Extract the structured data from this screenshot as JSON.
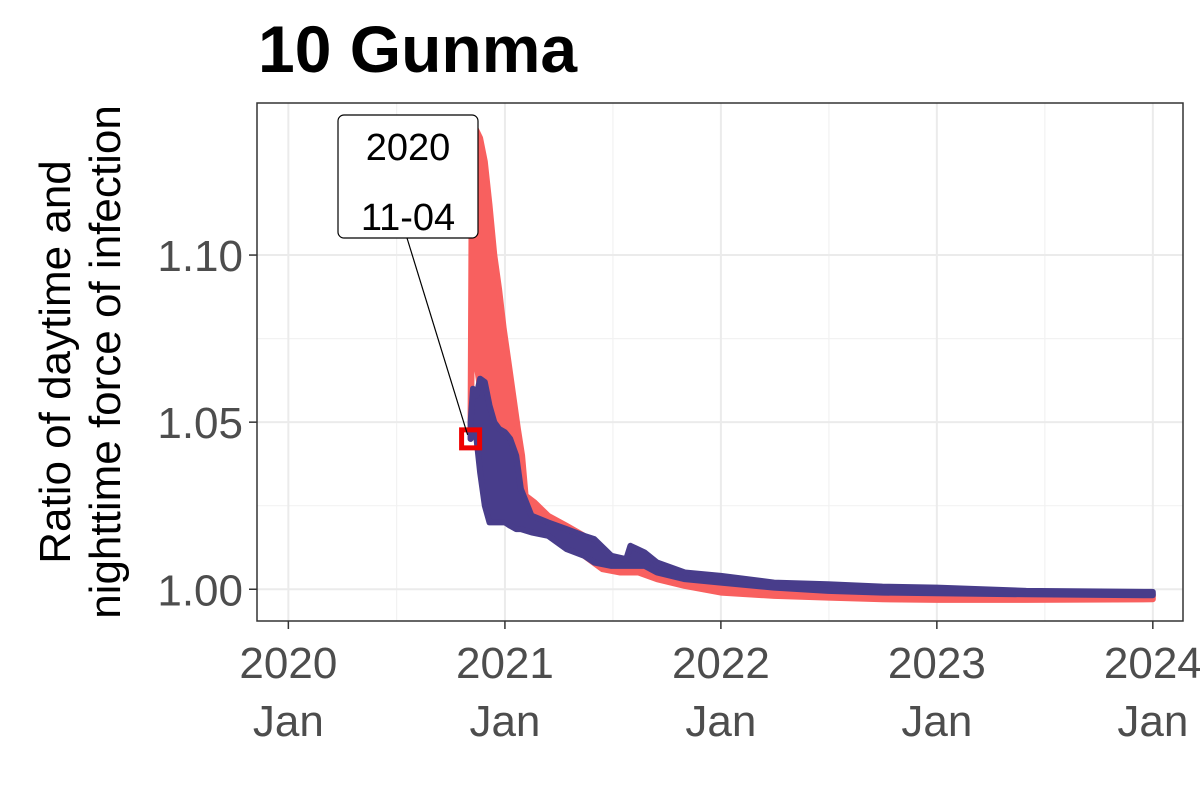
{
  "chart_data": {
    "type": "line",
    "title": "10 Gunma",
    "ylabel_lines": [
      "Ratio of daytime and",
      "nighttime force of infection"
    ],
    "xlabel": "",
    "x_ticks": [
      {
        "date": "2020-01-01",
        "line1": "2020",
        "line2": "Jan"
      },
      {
        "date": "2021-01-01",
        "line1": "2021",
        "line2": "Jan"
      },
      {
        "date": "2022-01-01",
        "line1": "2022",
        "line2": "Jan"
      },
      {
        "date": "2023-01-01",
        "line1": "2023",
        "line2": "Jan"
      },
      {
        "date": "2024-01-01",
        "line1": "2024",
        "line2": "Jan"
      }
    ],
    "y_ticks": [
      {
        "value": 1.0,
        "label": "1.00"
      },
      {
        "value": 1.05,
        "label": "1.05"
      },
      {
        "value": 1.1,
        "label": "1.10"
      }
    ],
    "xlim": [
      "2019-11-09",
      "2024-02-21"
    ],
    "ylim": [
      0.9905,
      1.1455
    ],
    "grid": true,
    "legend": "none",
    "series": [
      {
        "color": "#f8605f",
        "band": [
          {
            "x": "2020-11-04",
            "lo": 1.045,
            "hi": 1.052
          },
          {
            "x": "2020-11-06",
            "lo": 1.07,
            "hi": 1.125
          },
          {
            "x": "2020-11-12",
            "lo": 1.07,
            "hi": 1.138
          },
          {
            "x": "2020-11-20",
            "lo": 1.06,
            "hi": 1.135
          },
          {
            "x": "2020-11-28",
            "lo": 1.05,
            "hi": 1.128
          },
          {
            "x": "2020-12-06",
            "lo": 1.04,
            "hi": 1.115
          },
          {
            "x": "2020-12-14",
            "lo": 1.03,
            "hi": 1.1
          },
          {
            "x": "2020-12-22",
            "lo": 1.025,
            "hi": 1.09
          },
          {
            "x": "2020-12-30",
            "lo": 1.022,
            "hi": 1.078
          },
          {
            "x": "2021-01-07",
            "lo": 1.022,
            "hi": 1.068
          },
          {
            "x": "2021-01-15",
            "lo": 1.021,
            "hi": 1.058
          },
          {
            "x": "2021-01-23",
            "lo": 1.021,
            "hi": 1.048
          },
          {
            "x": "2021-01-30",
            "lo": 1.02,
            "hi": 1.04
          },
          {
            "x": "2021-02-05",
            "lo": 1.02,
            "hi": 1.028
          },
          {
            "x": "2021-02-20",
            "lo": 1.019,
            "hi": 1.026
          },
          {
            "x": "2021-03-15",
            "lo": 1.017,
            "hi": 1.022
          },
          {
            "x": "2021-04-15",
            "lo": 1.014,
            "hi": 1.019
          },
          {
            "x": "2021-05-15",
            "lo": 1.01,
            "hi": 1.016
          },
          {
            "x": "2021-06-15",
            "lo": 1.006,
            "hi": 1.009
          },
          {
            "x": "2021-07-15",
            "lo": 1.005,
            "hi": 1.008
          },
          {
            "x": "2021-08-15",
            "lo": 1.005,
            "hi": 1.008
          },
          {
            "x": "2021-09-15",
            "lo": 1.003,
            "hi": 1.006
          },
          {
            "x": "2021-11-01",
            "lo": 1.001,
            "hi": 1.004
          },
          {
            "x": "2022-01-01",
            "lo": 0.999,
            "hi": 1.002
          },
          {
            "x": "2022-04-01",
            "lo": 0.998,
            "hi": 1.0005
          },
          {
            "x": "2022-07-01",
            "lo": 0.9975,
            "hi": 0.9995
          },
          {
            "x": "2022-10-01",
            "lo": 0.997,
            "hi": 0.999
          },
          {
            "x": "2023-01-01",
            "lo": 0.9968,
            "hi": 0.9988
          },
          {
            "x": "2023-06-01",
            "lo": 0.9968,
            "hi": 0.9985
          },
          {
            "x": "2024-01-01",
            "lo": 0.997,
            "hi": 0.9985
          }
        ]
      },
      {
        "color": "#483d8b",
        "band": [
          {
            "x": "2020-11-04",
            "lo": 1.045,
            "hi": 1.05
          },
          {
            "x": "2020-11-08",
            "lo": 1.048,
            "hi": 1.06
          },
          {
            "x": "2020-11-14",
            "lo": 1.045,
            "hi": 1.058
          },
          {
            "x": "2020-11-20",
            "lo": 1.035,
            "hi": 1.063
          },
          {
            "x": "2020-11-28",
            "lo": 1.025,
            "hi": 1.062
          },
          {
            "x": "2020-12-06",
            "lo": 1.02,
            "hi": 1.055
          },
          {
            "x": "2020-12-14",
            "lo": 1.02,
            "hi": 1.05
          },
          {
            "x": "2020-12-22",
            "lo": 1.02,
            "hi": 1.048
          },
          {
            "x": "2021-01-01",
            "lo": 1.02,
            "hi": 1.047
          },
          {
            "x": "2021-01-10",
            "lo": 1.019,
            "hi": 1.045
          },
          {
            "x": "2021-01-20",
            "lo": 1.018,
            "hi": 1.04
          },
          {
            "x": "2021-01-28",
            "lo": 1.018,
            "hi": 1.03
          },
          {
            "x": "2021-02-15",
            "lo": 1.017,
            "hi": 1.022
          },
          {
            "x": "2021-03-15",
            "lo": 1.016,
            "hi": 1.02
          },
          {
            "x": "2021-04-15",
            "lo": 1.012,
            "hi": 1.018
          },
          {
            "x": "2021-05-15",
            "lo": 1.01,
            "hi": 1.016
          },
          {
            "x": "2021-06-01",
            "lo": 1.008,
            "hi": 1.015
          },
          {
            "x": "2021-06-30",
            "lo": 1.007,
            "hi": 1.01
          },
          {
            "x": "2021-07-25",
            "lo": 1.007,
            "hi": 1.009
          },
          {
            "x": "2021-08-01",
            "lo": 1.007,
            "hi": 1.013
          },
          {
            "x": "2021-08-25",
            "lo": 1.007,
            "hi": 1.011
          },
          {
            "x": "2021-09-15",
            "lo": 1.005,
            "hi": 1.008
          },
          {
            "x": "2021-11-01",
            "lo": 1.003,
            "hi": 1.005
          },
          {
            "x": "2022-01-01",
            "lo": 1.002,
            "hi": 1.004
          },
          {
            "x": "2022-04-01",
            "lo": 1.0005,
            "hi": 1.002
          },
          {
            "x": "2022-07-01",
            "lo": 0.9995,
            "hi": 1.0015
          },
          {
            "x": "2022-10-01",
            "lo": 0.999,
            "hi": 1.0008
          },
          {
            "x": "2023-01-01",
            "lo": 0.9988,
            "hi": 1.0005
          },
          {
            "x": "2023-06-01",
            "lo": 0.9985,
            "hi": 0.9995
          },
          {
            "x": "2024-01-01",
            "lo": 0.9982,
            "hi": 0.9992
          }
        ]
      }
    ],
    "highlight_marker": {
      "x": "2020-11-04",
      "y": 1.045,
      "color": "#ee0000"
    },
    "annotation": {
      "lines": [
        "2020",
        "11-04"
      ],
      "x": "2020-11-04",
      "y": 1.045
    }
  }
}
